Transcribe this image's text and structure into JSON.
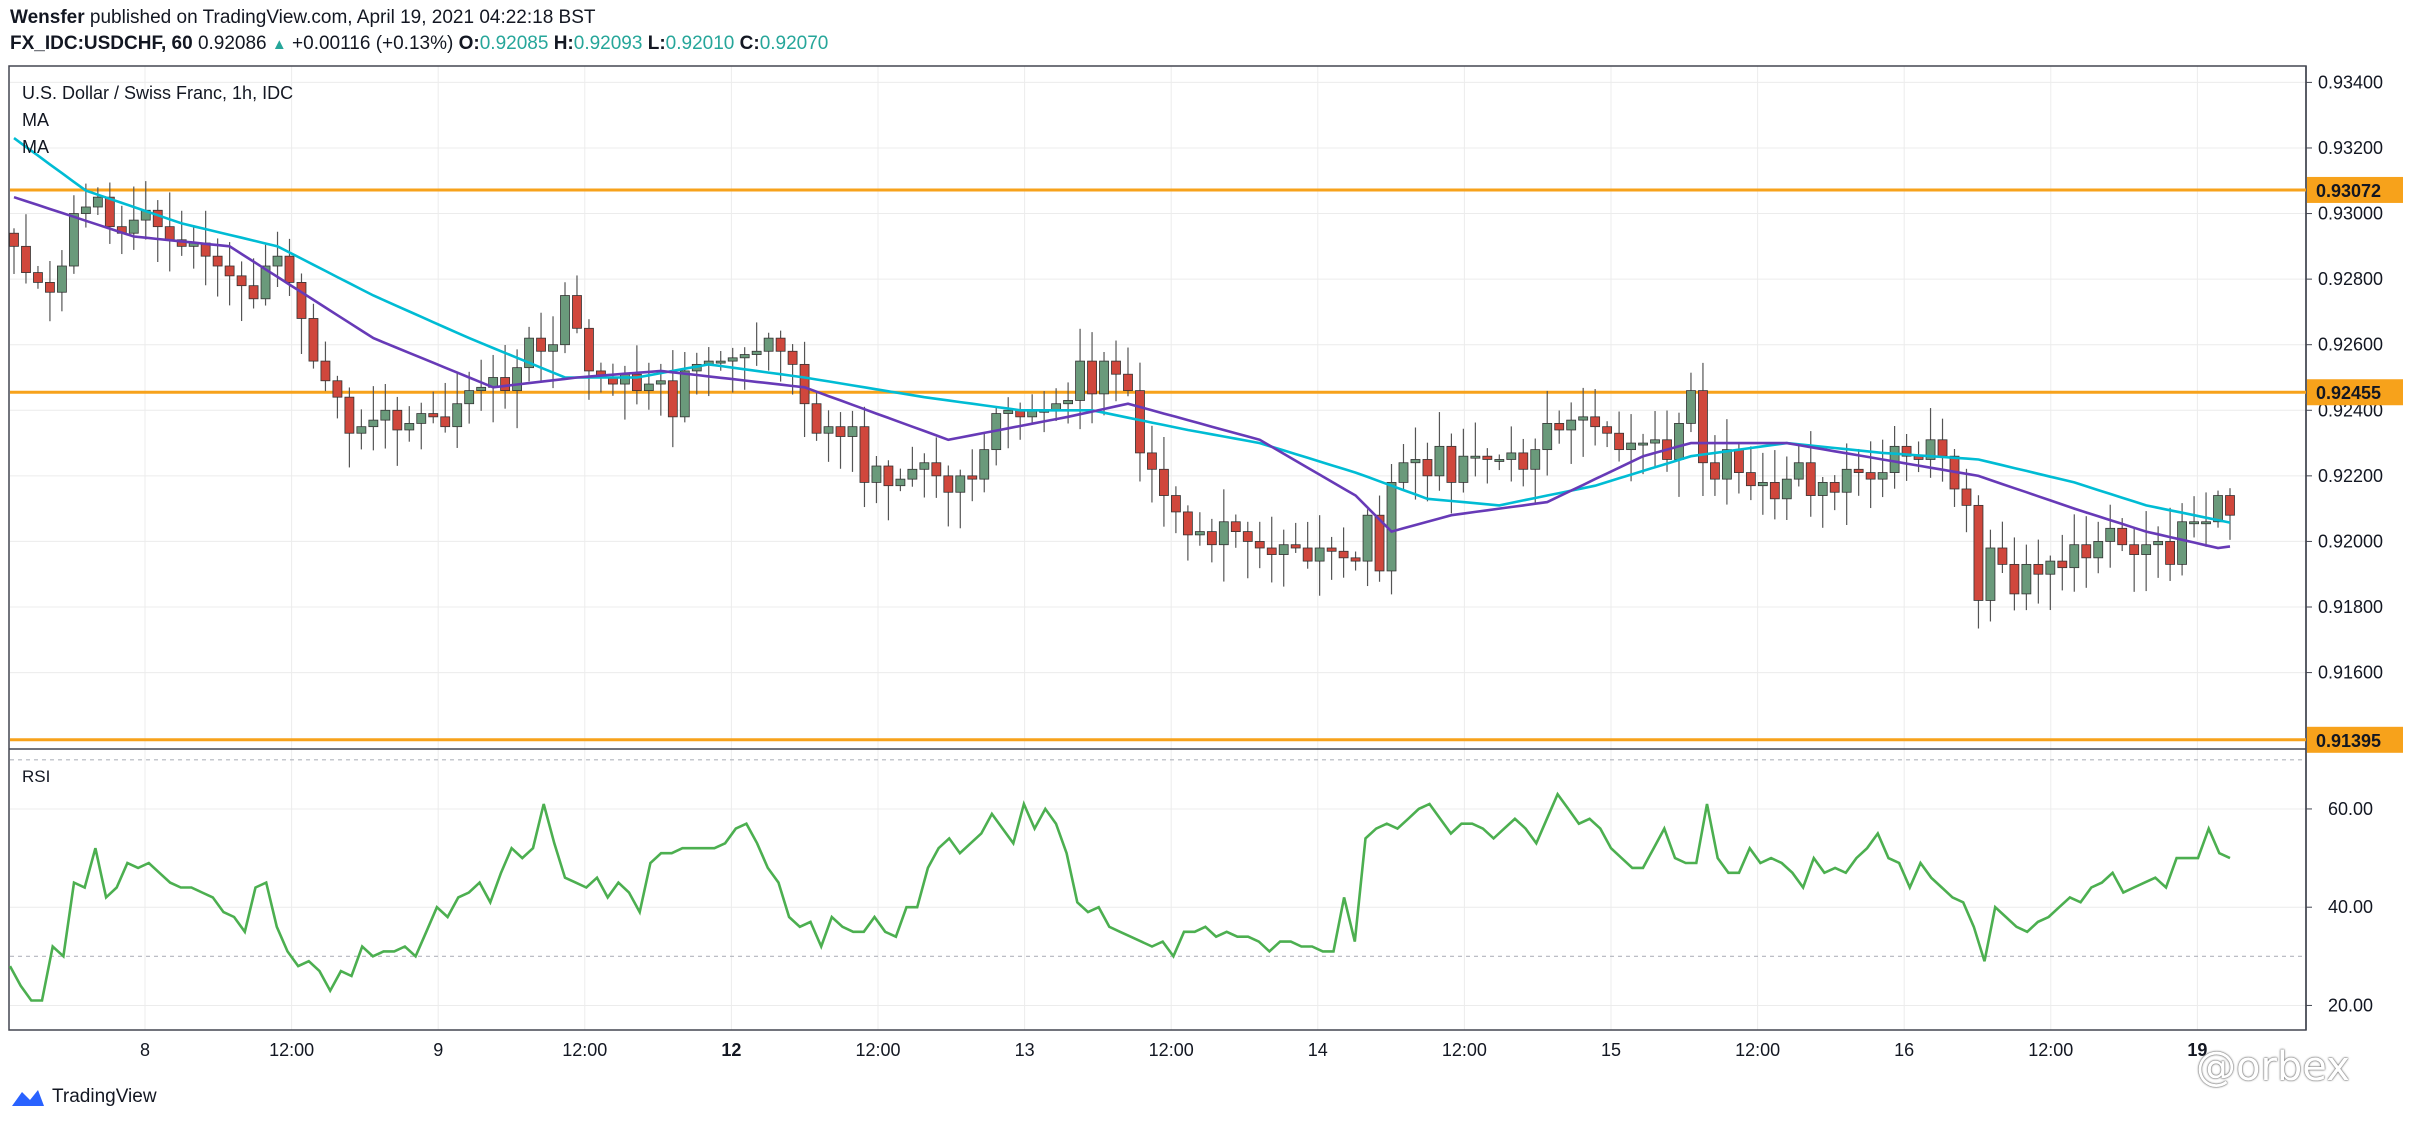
{
  "header": {
    "author": "Wensfer",
    "published_text": "published on TradingView.com, April 19, 2021 04:22:18 BST",
    "symbol": "FX_IDC:USDCHF, 60",
    "last_price": "0.92086",
    "arrow": "▲",
    "change": "+0.00116 (+0.13%)",
    "o_label": "O:",
    "o_value": "0.92085",
    "h_label": "H:",
    "h_value": "0.92093",
    "l_label": "L:",
    "l_value": "0.92010",
    "c_label": "C:",
    "c_value": "0.92070"
  },
  "pane": {
    "title": "U.S. Dollar / Swiss Franc, 1h, IDC",
    "ma1_label": "MA",
    "ma2_label": "MA",
    "rsi_label": "RSI"
  },
  "footer": {
    "brand": "TradingView"
  },
  "watermark": "@orbex",
  "colors": {
    "up": "#6a9a7b",
    "down": "#d0473c",
    "ma_fast": "#673ab7",
    "ma_slow": "#00bcd4",
    "level": "#f7a21b",
    "rsi": "#4caf50",
    "grid": "#ececec"
  },
  "chart_data": [
    {
      "type": "candlestick",
      "title": "U.S. Dollar / Swiss Franc, 1h, IDC",
      "y_ticks": [
        0.916,
        0.918,
        0.92,
        0.922,
        0.924,
        0.926,
        0.928,
        0.93,
        0.932,
        0.934
      ],
      "y_tick_labels": [
        "0.91600",
        "0.91800",
        "0.92000",
        "0.92200",
        "0.92400",
        "0.92600",
        "0.92800",
        "0.93000",
        "0.93200",
        "0.93400"
      ],
      "ylim": [
        0.9137,
        0.9345
      ],
      "x_tick_labels": [
        "8",
        "12:00",
        "9",
        "12:00",
        "12",
        "12:00",
        "13",
        "12:00",
        "14",
        "12:00",
        "15",
        "12:00",
        "16",
        "12:00",
        "19"
      ],
      "bold_x_ticks": [
        "12",
        "19"
      ],
      "horizontal_levels": [
        {
          "value": 0.93072,
          "label": "0.93072"
        },
        {
          "value": 0.92455,
          "label": "0.92455"
        },
        {
          "value": 0.91395,
          "label": "0.91395"
        }
      ],
      "closes": [
        0.929,
        0.9282,
        0.9279,
        0.9276,
        0.9284,
        0.93,
        0.9302,
        0.9305,
        0.9296,
        0.9294,
        0.9298,
        0.9301,
        0.9296,
        0.9292,
        0.929,
        0.9291,
        0.9287,
        0.9284,
        0.9281,
        0.9278,
        0.9274,
        0.9284,
        0.9287,
        0.9279,
        0.9268,
        0.9255,
        0.9249,
        0.9244,
        0.9233,
        0.9235,
        0.9237,
        0.924,
        0.9234,
        0.9236,
        0.9239,
        0.9238,
        0.9235,
        0.9242,
        0.9246,
        0.9247,
        0.925,
        0.9246,
        0.9253,
        0.9262,
        0.9258,
        0.926,
        0.9275,
        0.9265,
        0.9252,
        0.925,
        0.9248,
        0.9251,
        0.9246,
        0.9248,
        0.9249,
        0.9238,
        0.9252,
        0.9254,
        0.9255,
        0.9255,
        0.9256,
        0.9257,
        0.9258,
        0.9262,
        0.9258,
        0.9254,
        0.9242,
        0.9233,
        0.9235,
        0.9232,
        0.9235,
        0.9218,
        0.9223,
        0.9217,
        0.9219,
        0.9222,
        0.9224,
        0.922,
        0.9215,
        0.922,
        0.9219,
        0.9228,
        0.9239,
        0.924,
        0.9238,
        0.924,
        0.924,
        0.9242,
        0.9243,
        0.9255,
        0.9245,
        0.9255,
        0.9251,
        0.9246,
        0.9227,
        0.9222,
        0.9214,
        0.9209,
        0.9202,
        0.9203,
        0.9199,
        0.9206,
        0.9203,
        0.92,
        0.9198,
        0.9196,
        0.9199,
        0.9198,
        0.9194,
        0.9198,
        0.9197,
        0.9195,
        0.9194,
        0.9208,
        0.9191,
        0.9218,
        0.9224,
        0.9225,
        0.922,
        0.9229,
        0.9218,
        0.9226,
        0.9226,
        0.9225,
        0.9225,
        0.9227,
        0.9222,
        0.9228,
        0.9236,
        0.9234,
        0.9237,
        0.9238,
        0.9235,
        0.9233,
        0.9228,
        0.923,
        0.923,
        0.9231,
        0.9225,
        0.9236,
        0.9246,
        0.9224,
        0.9219,
        0.9228,
        0.9221,
        0.9217,
        0.9218,
        0.9213,
        0.9219,
        0.9224,
        0.9214,
        0.9218,
        0.9215,
        0.9222,
        0.9221,
        0.9219,
        0.9221,
        0.9229,
        0.9226,
        0.9225,
        0.9231,
        0.9226,
        0.9216,
        0.9211,
        0.9182,
        0.9198,
        0.9193,
        0.9184,
        0.9193,
        0.919,
        0.9194,
        0.9192,
        0.9199,
        0.9195,
        0.92,
        0.9204,
        0.9199,
        0.9196,
        0.9199,
        0.92,
        0.9193,
        0.9206,
        0.9206,
        0.9206,
        0.9214,
        0.9208
      ],
      "ma_fast_anchors": [
        [
          0,
          0.9305
        ],
        [
          10,
          0.9293
        ],
        [
          18,
          0.929
        ],
        [
          30,
          0.9262
        ],
        [
          40,
          0.9247
        ],
        [
          47,
          0.925
        ],
        [
          54,
          0.9252
        ],
        [
          66,
          0.9247
        ],
        [
          78,
          0.9231
        ],
        [
          88,
          0.9238
        ],
        [
          93,
          0.9242
        ],
        [
          98,
          0.9237
        ],
        [
          104,
          0.9231
        ],
        [
          112,
          0.9214
        ],
        [
          115,
          0.9203
        ],
        [
          120,
          0.9208
        ],
        [
          128,
          0.9212
        ],
        [
          136,
          0.9226
        ],
        [
          140,
          0.923
        ],
        [
          148,
          0.923
        ],
        [
          156,
          0.9225
        ],
        [
          164,
          0.922
        ],
        [
          172,
          0.921
        ],
        [
          178,
          0.9203
        ],
        [
          184,
          0.9198
        ],
        [
          186,
          0.9199
        ]
      ],
      "ma_slow_anchors": [
        [
          0,
          0.9323
        ],
        [
          6,
          0.9307
        ],
        [
          14,
          0.9297
        ],
        [
          22,
          0.929
        ],
        [
          30,
          0.9275
        ],
        [
          38,
          0.9262
        ],
        [
          46,
          0.925
        ],
        [
          52,
          0.925
        ],
        [
          58,
          0.9254
        ],
        [
          66,
          0.925
        ],
        [
          76,
          0.9244
        ],
        [
          84,
          0.924
        ],
        [
          90,
          0.924
        ],
        [
          98,
          0.9234
        ],
        [
          104,
          0.923
        ],
        [
          112,
          0.9221
        ],
        [
          118,
          0.9213
        ],
        [
          124,
          0.9211
        ],
        [
          132,
          0.9217
        ],
        [
          140,
          0.9226
        ],
        [
          148,
          0.923
        ],
        [
          156,
          0.9227
        ],
        [
          164,
          0.9225
        ],
        [
          172,
          0.9218
        ],
        [
          178,
          0.9211
        ],
        [
          186,
          0.9205
        ]
      ]
    },
    {
      "type": "line",
      "title": "RSI",
      "y_ticks": [
        20,
        40,
        60
      ],
      "y_tick_labels": [
        "20.00",
        "40.00",
        "60.00"
      ],
      "ylim": [
        15,
        72
      ],
      "dashed_levels": [
        30,
        70
      ],
      "values": [
        28,
        24,
        21,
        21,
        32,
        30,
        45,
        44,
        52,
        42,
        44,
        49,
        48,
        49,
        47,
        45,
        44,
        44,
        43,
        42,
        39,
        38,
        35,
        44,
        45,
        36,
        31,
        28,
        29,
        27,
        23,
        27,
        26,
        32,
        30,
        31,
        31,
        32,
        30,
        35,
        40,
        38,
        42,
        43,
        45,
        41,
        47,
        52,
        50,
        52,
        61,
        53,
        46,
        45,
        44,
        46,
        42,
        45,
        43,
        39,
        49,
        51,
        51,
        52,
        52,
        52,
        52,
        53,
        56,
        57,
        53,
        48,
        45,
        38,
        36,
        37,
        32,
        38,
        36,
        35,
        35,
        38,
        35,
        34,
        40,
        40,
        48,
        52,
        54,
        51,
        53,
        55,
        59,
        56,
        53,
        61,
        56,
        60,
        57,
        51,
        41,
        39,
        40,
        36,
        35,
        34,
        33,
        32,
        33,
        30,
        35,
        35,
        36,
        34,
        35,
        34,
        34,
        33,
        31,
        33,
        33,
        32,
        32,
        31,
        31,
        42,
        33,
        54,
        56,
        57,
        56,
        58,
        60,
        61,
        58,
        55,
        57,
        57,
        56,
        54,
        56,
        58,
        56,
        53,
        58,
        63,
        60,
        57,
        58,
        56,
        52,
        50,
        48,
        48,
        52,
        56,
        50,
        49,
        49,
        61,
        50,
        47,
        47,
        52,
        49,
        50,
        49,
        47,
        44,
        50,
        47,
        48,
        47,
        50,
        52,
        55,
        50,
        49,
        44,
        49,
        46,
        44,
        42,
        41,
        36,
        29,
        40,
        38,
        36,
        35,
        37,
        38,
        40,
        42,
        41,
        44,
        45,
        47,
        43,
        44,
        45,
        46,
        44,
        50,
        50,
        50,
        56,
        51,
        50
      ]
    }
  ]
}
